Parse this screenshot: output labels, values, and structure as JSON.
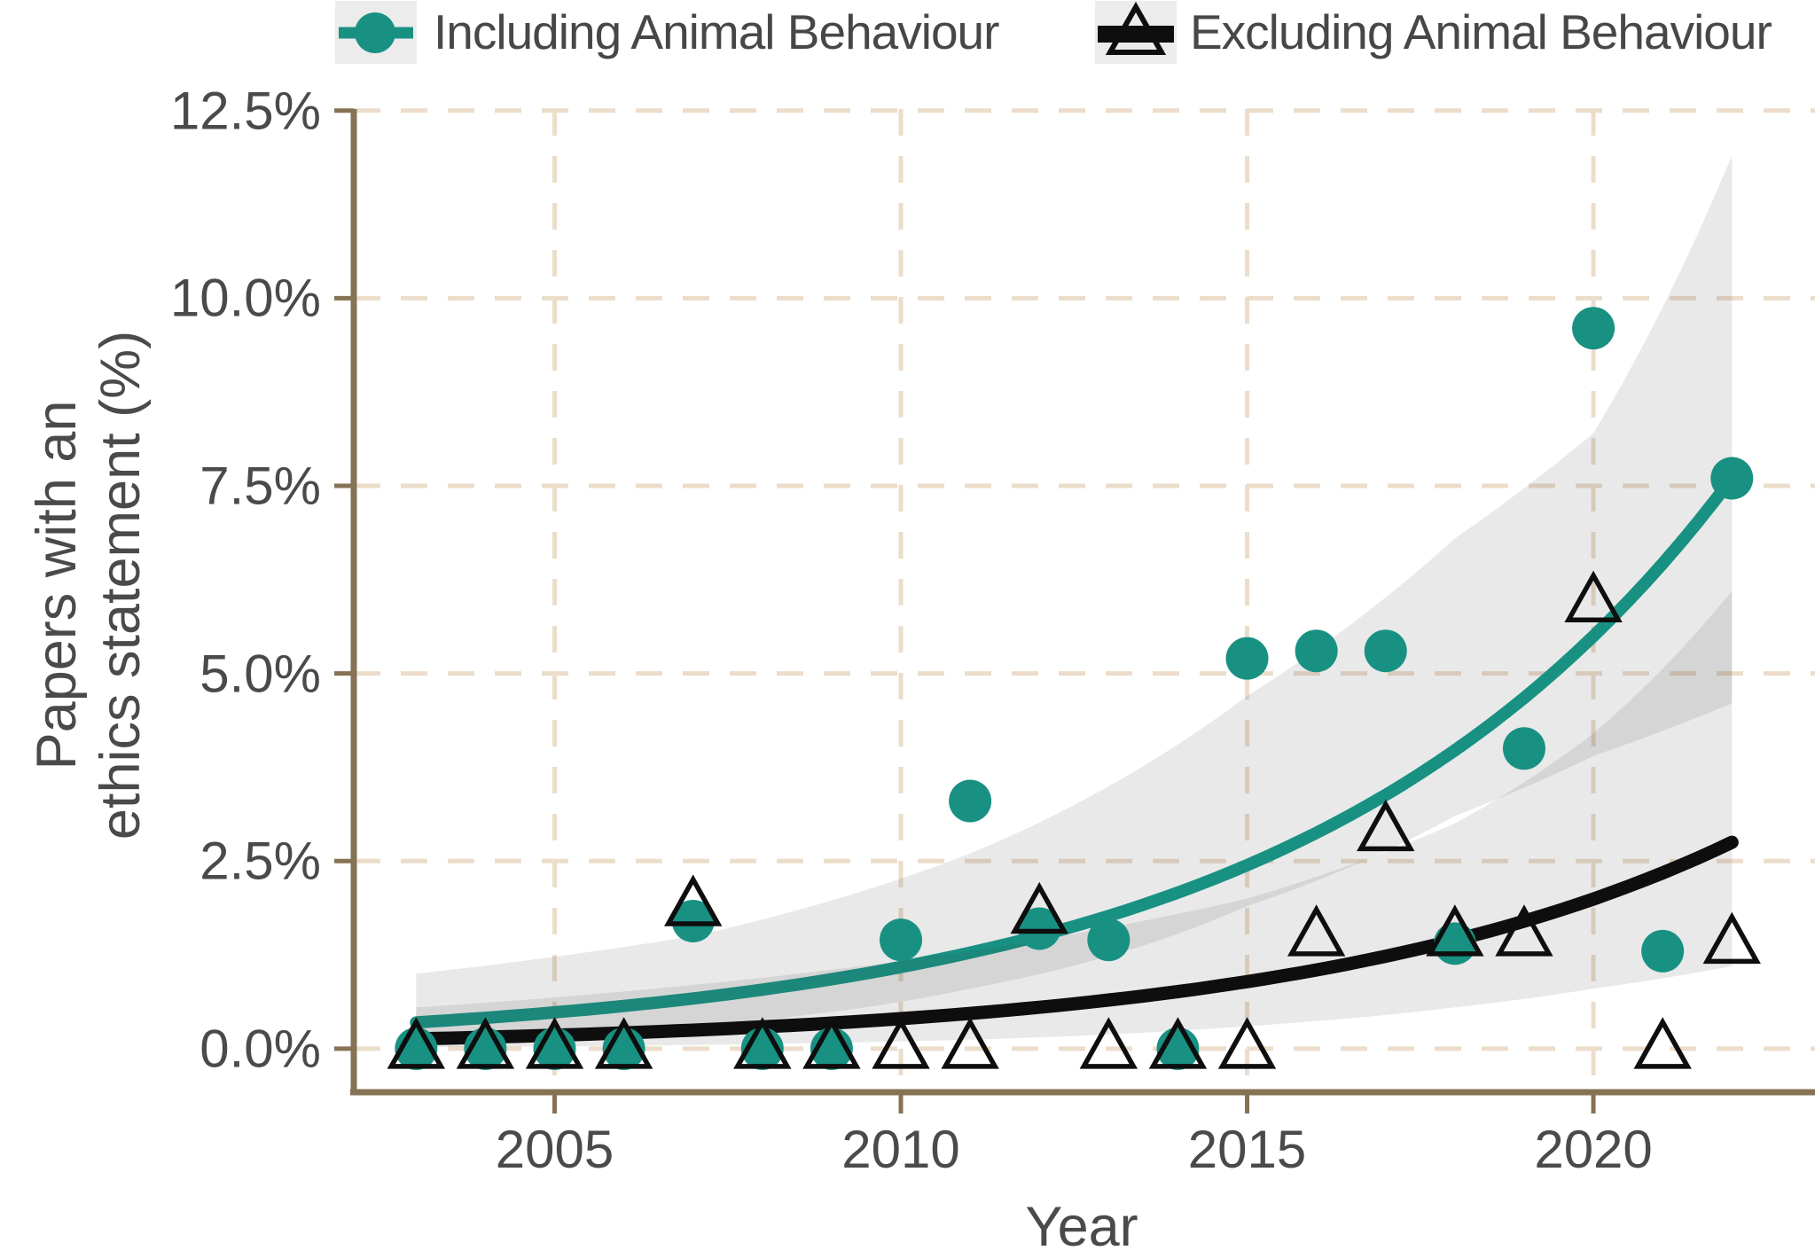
{
  "legend": {
    "items": [
      {
        "label": "Including Animal Behaviour",
        "marker": "circle-on-line",
        "color": "#189183"
      },
      {
        "label": "Excluding Animal Behaviour",
        "marker": "open-triangle-on-line",
        "color": "#0e0e0e"
      }
    ]
  },
  "chart_data": {
    "type": "scatter",
    "xlabel": "Year",
    "ylabel_line1": "Papers with an",
    "ylabel_line2": "ethics statement (%)",
    "xlim": [
      2002.1,
      2023.2
    ],
    "ylim": [
      -0.58,
      12.52
    ],
    "grid": "dashed",
    "legend_position": "top",
    "x_axis": {
      "ticks": [
        {
          "value": 2005,
          "label": "2005"
        },
        {
          "value": 2010,
          "label": "2010"
        },
        {
          "value": 2015,
          "label": "2015"
        },
        {
          "value": 2020,
          "label": "2020"
        }
      ]
    },
    "y_axis": {
      "ticks": [
        {
          "value": 0,
          "label": "0.0%"
        },
        {
          "value": 2.5,
          "label": "2.5%"
        },
        {
          "value": 5,
          "label": "5.0%"
        },
        {
          "value": 7.5,
          "label": "7.5%"
        },
        {
          "value": 10,
          "label": "10.0%"
        },
        {
          "value": 12.5,
          "label": "12.5%"
        }
      ]
    },
    "years": [
      2003,
      2004,
      2005,
      2006,
      2007,
      2008,
      2009,
      2010,
      2011,
      2012,
      2013,
      2014,
      2015,
      2016,
      2017,
      2018,
      2019,
      2020,
      2021,
      2022
    ],
    "series": [
      {
        "name": "Including Animal Behaviour",
        "marker": "circle",
        "color": "#189183",
        "values": [
          0,
          0,
          0,
          0,
          1.7,
          0,
          0,
          1.45,
          3.3,
          1.6,
          1.45,
          0,
          5.2,
          5.3,
          5.3,
          1.4,
          4.0,
          9.6,
          1.3,
          7.6
        ],
        "trend": {
          "start_year": 2003,
          "start_value": 0.35,
          "end_year": 2022,
          "end_value": 7.6
        },
        "ci": {
          "years": [
            2003,
            2007,
            2011,
            2015,
            2018,
            2020,
            2022
          ],
          "lower": [
            0.12,
            0.3,
            0.8,
            1.9,
            3.1,
            3.9,
            4.6
          ],
          "upper": [
            1.0,
            1.5,
            2.6,
            4.7,
            6.8,
            8.2,
            11.9
          ]
        }
      },
      {
        "name": "Excluding Animal Behaviour",
        "marker": "triangle-open",
        "color": "#0e0e0e",
        "values": [
          0,
          0,
          0,
          0,
          1.9,
          0,
          0,
          0,
          0,
          1.8,
          0,
          0,
          0,
          1.5,
          2.9,
          1.5,
          1.5,
          5.95,
          0,
          1.4
        ],
        "trend": {
          "start_year": 2003,
          "start_value": 0.13,
          "end_year": 2022,
          "end_value": 2.75
        },
        "ci": {
          "years": [
            2003,
            2007,
            2011,
            2015,
            2018,
            2020,
            2022
          ],
          "lower": [
            0.02,
            0.05,
            0.12,
            0.3,
            0.55,
            0.8,
            1.1
          ],
          "upper": [
            0.55,
            0.85,
            1.3,
            2.0,
            3.0,
            4.2,
            6.1
          ]
        }
      }
    ],
    "colors": {
      "grid": "#ecddca",
      "axis": "#867254",
      "tick_text": "#4a4a4a",
      "ci_fill": "rgba(60,60,60,0.115)",
      "legend_key_bg": "#ececec",
      "background": "#ffffff"
    }
  }
}
